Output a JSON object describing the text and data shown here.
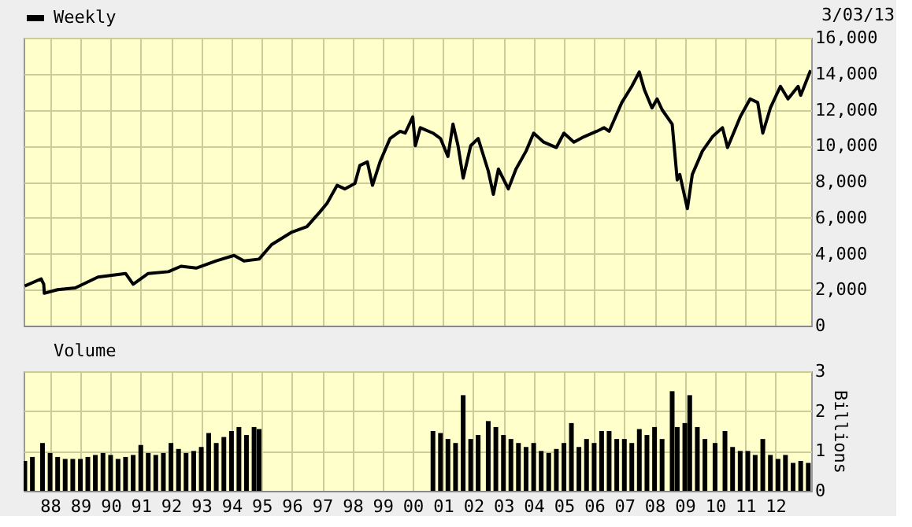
{
  "chart_data": [
    {
      "type": "line",
      "legend": "top left",
      "grid": true,
      "tick_labels": "y",
      "annotations": [
        "3/03/13"
      ],
      "xlim": [
        "1987-02-15",
        "2013-03-08"
      ],
      "xticks": [
        {
          "value": "1988-01-01",
          "label": null
        },
        {
          "value": "1989-01-01",
          "label": null
        },
        {
          "value": "1990-01-01",
          "label": null
        },
        {
          "value": "1991-01-01",
          "label": null
        },
        {
          "value": "1992-01-01",
          "label": null
        },
        {
          "value": "1993-01-01",
          "label": null
        },
        {
          "value": "1994-01-01",
          "label": null
        },
        {
          "value": "1995-01-01",
          "label": null
        },
        {
          "value": "1996-01-01",
          "label": null
        },
        {
          "value": "1997-01-01",
          "label": null
        },
        {
          "value": "1998-01-01",
          "label": null
        },
        {
          "value": "1999-01-01",
          "label": null
        },
        {
          "value": "2000-01-01",
          "label": null
        },
        {
          "value": "2001-01-01",
          "label": null
        },
        {
          "value": "2002-01-01",
          "label": null
        },
        {
          "value": "2003-01-01",
          "label": null
        },
        {
          "value": "2004-01-01",
          "label": null
        },
        {
          "value": "2005-01-01",
          "label": null
        },
        {
          "value": "2006-01-01",
          "label": null
        },
        {
          "value": "2007-01-01",
          "label": null
        },
        {
          "value": "2008-01-01",
          "label": null
        },
        {
          "value": "2009-01-01",
          "label": null
        },
        {
          "value": "2010-01-01",
          "label": null
        },
        {
          "value": "2011-01-01",
          "label": null
        },
        {
          "value": "2012-01-01",
          "label": null
        }
      ],
      "ylim": [
        0,
        16000
      ],
      "yticks": [
        0,
        {
          "value": 2000,
          "label": "2,000"
        },
        {
          "value": 4000,
          "label": "4,000"
        },
        {
          "value": 6000,
          "label": "6,000"
        },
        {
          "value": 8000,
          "label": "8,000"
        },
        {
          "value": 10000,
          "label": "10,000"
        },
        {
          "value": 12000,
          "label": "12,000"
        },
        {
          "value": 14000,
          "label": "14,000"
        },
        {
          "value": 16000,
          "label": "16,000"
        }
      ],
      "series": [
        {
          "name": "Weekly",
          "color": "#000000",
          "x": [
            "1987-03",
            "1987-09-15",
            "1987-10-16",
            "1987-10-23",
            "1988-04",
            "1988-11",
            "1989-08",
            "1990-07",
            "1990-10",
            "1991-04",
            "1991-12",
            "1992-05",
            "1992-11",
            "1993-07",
            "1994-02",
            "1994-06",
            "1994-12",
            "1995-05",
            "1996-01",
            "1996-07",
            "1996-12",
            "1997-03",
            "1997-07",
            "1997-10",
            "1998-02",
            "1998-04",
            "1998-07",
            "1998-09",
            "1998-12",
            "1999-04",
            "1999-08",
            "1999-10",
            "2000-01",
            "2000-02",
            "2000-04",
            "2000-09",
            "2000-12",
            "2001-03",
            "2001-05",
            "2001-07",
            "2001-09",
            "2001-12",
            "2002-03",
            "2002-07",
            "2002-09",
            "2002-11",
            "2003-03",
            "2003-06",
            "2003-10",
            "2004-01",
            "2004-05",
            "2004-10",
            "2005-01",
            "2005-05",
            "2005-09",
            "2006-02",
            "2006-05",
            "2006-07",
            "2006-12",
            "2007-04",
            "2007-07",
            "2007-09",
            "2007-12",
            "2008-02",
            "2008-04",
            "2008-08",
            "2008-10",
            "2008-11",
            "2009-02",
            "2009-04",
            "2009-08",
            "2009-12",
            "2010-04",
            "2010-06",
            "2010-11",
            "2011-03",
            "2011-06",
            "2011-08",
            "2011-11",
            "2012-03",
            "2012-06",
            "2012-10",
            "2012-11",
            "2013-03-01"
          ],
          "values": [
            2200,
            2600,
            2300,
            1800,
            2000,
            2100,
            2700,
            2900,
            2300,
            2900,
            3000,
            3300,
            3200,
            3600,
            3900,
            3600,
            3700,
            4500,
            5200,
            5500,
            6300,
            6800,
            7800,
            7600,
            7900,
            8900,
            9100,
            7800,
            9100,
            10400,
            10800,
            10700,
            11600,
            10000,
            11000,
            10700,
            10400,
            9400,
            11200,
            10000,
            8200,
            10000,
            10400,
            8600,
            7300,
            8700,
            7600,
            8700,
            9700,
            10700,
            10200,
            9900,
            10700,
            10200,
            10500,
            10800,
            11000,
            10800,
            12400,
            13300,
            14100,
            13100,
            12100,
            12600,
            12000,
            11200,
            8100,
            8400,
            6500,
            8400,
            9700,
            10500,
            11000,
            9900,
            11600,
            12600,
            12400,
            10700,
            12100,
            13300,
            12600,
            13300,
            12800,
            14200
          ]
        }
      ]
    },
    {
      "type": "bar",
      "legend": "top left",
      "grid": true,
      "ylabel": "Billions",
      "xlim": [
        "1987-02-15",
        "2013-03-08"
      ],
      "xticks": [
        {
          "value": "1988-01-01",
          "label": "88"
        },
        {
          "value": "1989-01-01",
          "label": "89"
        },
        {
          "value": "1990-01-01",
          "label": "90"
        },
        {
          "value": "1991-01-01",
          "label": "91"
        },
        {
          "value": "1992-01-01",
          "label": "92"
        },
        {
          "value": "1993-01-01",
          "label": "93"
        },
        {
          "value": "1994-01-01",
          "label": "94"
        },
        {
          "value": "1995-01-01",
          "label": "95"
        },
        {
          "value": "1996-01-01",
          "label": "96"
        },
        {
          "value": "1997-01-01",
          "label": "97"
        },
        {
          "value": "1998-01-01",
          "label": "98"
        },
        {
          "value": "1999-01-01",
          "label": "99"
        },
        {
          "value": "2000-01-01",
          "label": "00"
        },
        {
          "value": "2001-01-01",
          "label": "01"
        },
        {
          "value": "2002-01-01",
          "label": "02"
        },
        {
          "value": "2003-01-01",
          "label": "03"
        },
        {
          "value": "2004-01-01",
          "label": "04"
        },
        {
          "value": "2005-01-01",
          "label": "05"
        },
        {
          "value": "2006-01-01",
          "label": "06"
        },
        {
          "value": "2007-01-01",
          "label": "07"
        },
        {
          "value": "2008-01-01",
          "label": "08"
        },
        {
          "value": "2009-01-01",
          "label": "09"
        },
        {
          "value": "2010-01-01",
          "label": "10"
        },
        {
          "value": "2011-01-01",
          "label": "11"
        },
        {
          "value": "2012-01-01",
          "label": "12"
        }
      ],
      "ylim": [
        0,
        3
      ],
      "yticks": [
        0,
        1,
        2,
        3
      ],
      "series": [
        {
          "name": "Volume",
          "color": "#000000",
          "x": [
            "1987-03",
            "1987-06",
            "1987-10",
            "1988-01",
            "1988-04",
            "1988-07",
            "1988-10",
            "1989-01",
            "1989-04",
            "1989-07",
            "1989-10",
            "1990-01",
            "1990-04",
            "1990-07",
            "1990-10",
            "1991-01",
            "1991-04",
            "1991-07",
            "1991-10",
            "1992-01",
            "1992-04",
            "1992-07",
            "1992-10",
            "1993-01",
            "1993-04",
            "1993-07",
            "1993-10",
            "1994-01",
            "1994-04",
            "1994-07",
            "1994-10",
            "1994-12",
            "2000-09",
            "2000-12",
            "2001-03",
            "2001-06",
            "2001-09",
            "2001-12",
            "2002-03",
            "2002-07",
            "2002-10",
            "2003-01",
            "2003-04",
            "2003-07",
            "2003-10",
            "2004-01",
            "2004-04",
            "2004-07",
            "2004-10",
            "2005-01",
            "2005-04",
            "2005-07",
            "2005-10",
            "2006-01",
            "2006-04",
            "2006-07",
            "2006-10",
            "2007-01",
            "2007-04",
            "2007-07",
            "2007-10",
            "2008-01",
            "2008-04",
            "2008-08",
            "2008-10",
            "2009-01",
            "2009-03",
            "2009-06",
            "2009-09",
            "2010-01",
            "2010-05",
            "2010-08",
            "2010-11",
            "2011-02",
            "2011-05",
            "2011-08",
            "2011-11",
            "2012-02",
            "2012-05",
            "2012-08",
            "2012-11",
            "2013-02"
          ],
          "values": [
            0.75,
            0.85,
            1.2,
            0.95,
            0.85,
            0.8,
            0.8,
            0.8,
            0.85,
            0.9,
            0.95,
            0.9,
            0.8,
            0.85,
            0.9,
            1.15,
            0.95,
            0.9,
            0.95,
            1.2,
            1.05,
            0.95,
            1.0,
            1.1,
            1.45,
            1.2,
            1.35,
            1.5,
            1.6,
            1.4,
            1.6,
            1.55,
            1.5,
            1.45,
            1.3,
            1.2,
            2.4,
            1.3,
            1.4,
            1.75,
            1.6,
            1.4,
            1.3,
            1.2,
            1.1,
            1.2,
            1.0,
            0.95,
            1.05,
            1.2,
            1.7,
            1.1,
            1.3,
            1.2,
            1.5,
            1.5,
            1.3,
            1.3,
            1.2,
            1.55,
            1.4,
            1.6,
            1.3,
            2.5,
            1.6,
            1.7,
            2.4,
            1.6,
            1.3,
            1.2,
            1.5,
            1.1,
            1.0,
            1.0,
            0.9,
            1.3,
            0.9,
            0.8,
            0.9,
            0.7,
            0.75,
            0.7
          ]
        }
      ]
    }
  ]
}
